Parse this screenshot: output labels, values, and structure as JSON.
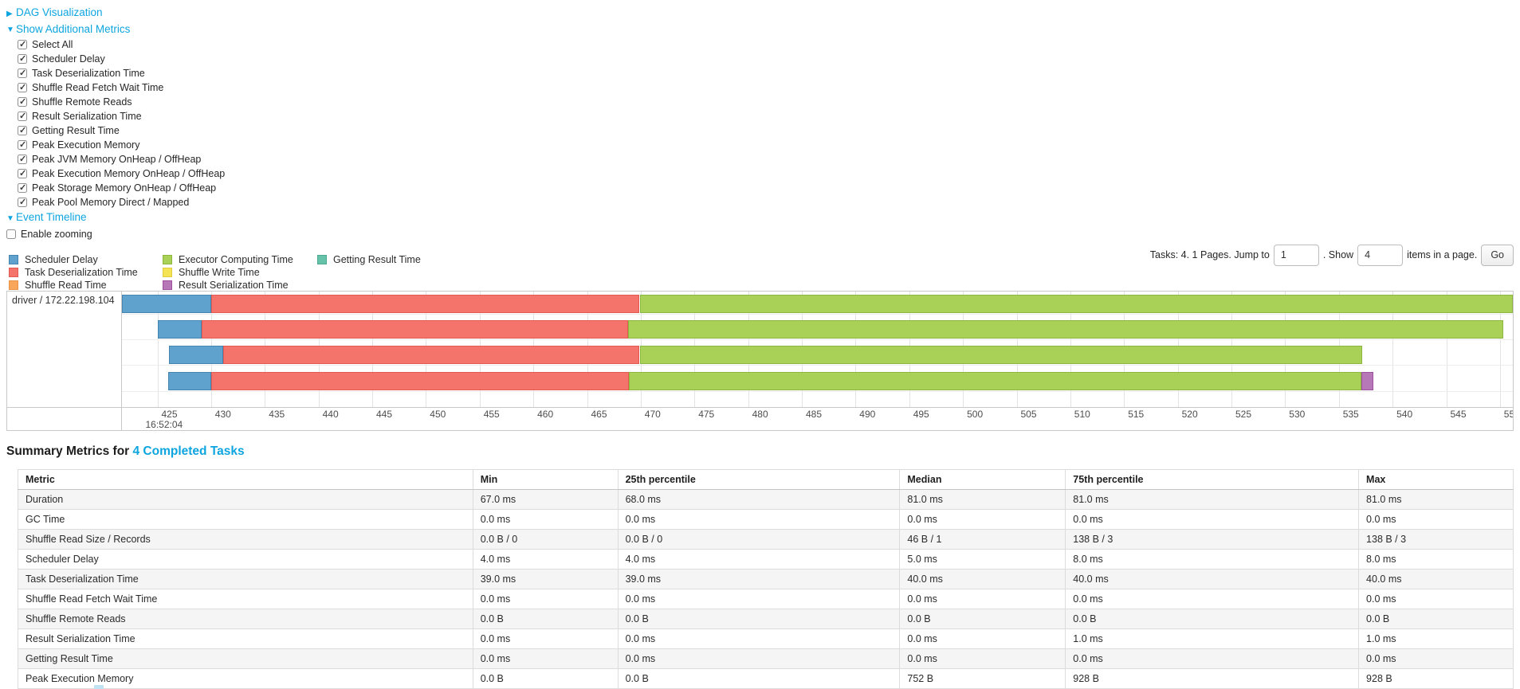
{
  "colors": {
    "link": "#0DA5DF",
    "grid": "#E3E3E3"
  },
  "sections": {
    "dag": {
      "arrow": "▶",
      "label": "DAG Visualization"
    },
    "additional_metrics": {
      "arrow": "▼",
      "label": "Show Additional Metrics",
      "checkboxes": [
        {
          "label": "Select All",
          "checked": true
        },
        {
          "label": "Scheduler Delay",
          "checked": true
        },
        {
          "label": "Task Deserialization Time",
          "checked": true
        },
        {
          "label": "Shuffle Read Fetch Wait Time",
          "checked": true
        },
        {
          "label": "Shuffle Remote Reads",
          "checked": true
        },
        {
          "label": "Result Serialization Time",
          "checked": true
        },
        {
          "label": "Getting Result Time",
          "checked": true
        },
        {
          "label": "Peak Execution Memory",
          "checked": true
        },
        {
          "label": "Peak JVM Memory OnHeap / OffHeap",
          "checked": true
        },
        {
          "label": "Peak Execution Memory OnHeap / OffHeap",
          "checked": true
        },
        {
          "label": "Peak Storage Memory OnHeap / OffHeap",
          "checked": true
        },
        {
          "label": "Peak Pool Memory Direct / Mapped",
          "checked": true
        }
      ]
    },
    "event_timeline": {
      "arrow": "▼",
      "label": "Event Timeline"
    },
    "enable_zooming": {
      "label": "Enable zooming",
      "checked": false
    }
  },
  "pager": {
    "tasks_text": "Tasks: 4. 1 Pages. Jump to",
    "jump_value": "1",
    "show_label": ". Show",
    "show_value": "4",
    "items_label": "items in a page.",
    "go_label": "Go"
  },
  "chart_data": {
    "type": "bar",
    "subtype": "task-event-timeline-gantt",
    "title": "Event Timeline",
    "group_label": "driver / 172.22.198.104",
    "x_axis": {
      "units": "ms within second 16:52:04",
      "domain": [
        421.7,
        551.2
      ],
      "tick_start": 425,
      "tick_end": 550,
      "tick_step": 5,
      "start_time_label": "16:52:04"
    },
    "legend": [
      {
        "key": "scheduler_delay",
        "label": "Scheduler Delay",
        "fill": "#5FA2CE",
        "border": "#4384B0"
      },
      {
        "key": "task_deserialization",
        "label": "Task Deserialization Time",
        "fill": "#F4736B",
        "border": "#E35A52"
      },
      {
        "key": "shuffle_read",
        "label": "Shuffle Read Time",
        "fill": "#F9A65A",
        "border": "#E8924A"
      },
      {
        "key": "executor_computing",
        "label": "Executor Computing Time",
        "fill": "#A9D158",
        "border": "#8CB63D"
      },
      {
        "key": "shuffle_write",
        "label": "Shuffle Write Time",
        "fill": "#F5E356",
        "border": "#E0CC3F"
      },
      {
        "key": "result_serialization",
        "label": "Result Serialization Time",
        "fill": "#B678B6",
        "border": "#9E4F9E"
      },
      {
        "key": "getting_result",
        "label": "Getting Result Time",
        "fill": "#66C2A9",
        "border": "#4BAA8F"
      }
    ],
    "legend_columns": [
      3,
      3,
      1
    ],
    "tasks": [
      {
        "segments": [
          {
            "key": "scheduler_delay",
            "start": 421.7,
            "end": 430.0
          },
          {
            "key": "task_deserialization",
            "start": 430.0,
            "end": 469.9
          },
          {
            "key": "executor_computing",
            "start": 469.9,
            "end": 551.2
          }
        ]
      },
      {
        "segments": [
          {
            "key": "scheduler_delay",
            "start": 425.0,
            "end": 429.1
          },
          {
            "key": "task_deserialization",
            "start": 429.1,
            "end": 468.8
          },
          {
            "key": "executor_computing",
            "start": 468.8,
            "end": 550.3
          }
        ]
      },
      {
        "segments": [
          {
            "key": "scheduler_delay",
            "start": 426.1,
            "end": 431.1
          },
          {
            "key": "task_deserialization",
            "start": 431.1,
            "end": 469.9
          },
          {
            "key": "executor_computing",
            "start": 469.9,
            "end": 537.2
          }
        ]
      },
      {
        "segments": [
          {
            "key": "scheduler_delay",
            "start": 426.0,
            "end": 430.0
          },
          {
            "key": "task_deserialization",
            "start": 430.0,
            "end": 468.9
          },
          {
            "key": "executor_computing",
            "start": 468.9,
            "end": 537.1
          },
          {
            "key": "result_serialization",
            "start": 537.1,
            "end": 538.2
          }
        ]
      }
    ]
  },
  "summary": {
    "title_prefix": "Summary Metrics for ",
    "title_link": "4 Completed Tasks",
    "table": {
      "headers": [
        "Metric",
        "Min",
        "25th percentile",
        "Median",
        "75th percentile",
        "Max"
      ],
      "rows": [
        {
          "metric": "Duration",
          "values": [
            "67.0 ms",
            "68.0 ms",
            "81.0 ms",
            "81.0 ms",
            "81.0 ms"
          ]
        },
        {
          "metric": "GC Time",
          "values": [
            "0.0 ms",
            "0.0 ms",
            "0.0 ms",
            "0.0 ms",
            "0.0 ms"
          ]
        },
        {
          "metric": "Shuffle Read Size / Records",
          "values": [
            "0.0 B / 0",
            "0.0 B / 0",
            "46 B / 1",
            "138 B / 3",
            "138 B / 3"
          ]
        },
        {
          "metric": "Scheduler Delay",
          "values": [
            "4.0 ms",
            "4.0 ms",
            "5.0 ms",
            "8.0 ms",
            "8.0 ms"
          ]
        },
        {
          "metric": "Task Deserialization Time",
          "values": [
            "39.0 ms",
            "39.0 ms",
            "40.0 ms",
            "40.0 ms",
            "40.0 ms"
          ]
        },
        {
          "metric": "Shuffle Read Fetch Wait Time",
          "values": [
            "0.0 ms",
            "0.0 ms",
            "0.0 ms",
            "0.0 ms",
            "0.0 ms"
          ]
        },
        {
          "metric": "Shuffle Remote Reads",
          "values": [
            "0.0 B",
            "0.0 B",
            "0.0 B",
            "0.0 B",
            "0.0 B"
          ]
        },
        {
          "metric": "Result Serialization Time",
          "values": [
            "0.0 ms",
            "0.0 ms",
            "0.0 ms",
            "1.0 ms",
            "1.0 ms"
          ]
        },
        {
          "metric": "Getting Result Time",
          "values": [
            "0.0 ms",
            "0.0 ms",
            "0.0 ms",
            "0.0 ms",
            "0.0 ms"
          ]
        },
        {
          "metric": "Peak Execution Memory",
          "values": [
            "0.0 B",
            "0.0 B",
            "752 B",
            "928 B",
            "928 B"
          ]
        }
      ]
    }
  }
}
